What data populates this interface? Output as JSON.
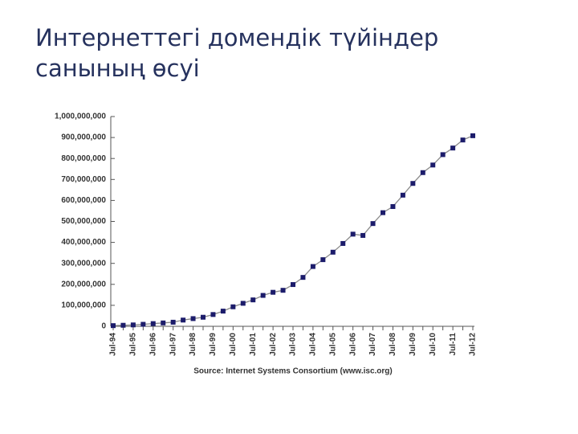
{
  "title": "Интернеттегі домендік түйіндер санының өсуі",
  "chart_data": {
    "type": "line",
    "categories": [
      "Jul-94",
      null,
      "Jul-95",
      null,
      "Jul-96",
      null,
      "Jul-97",
      null,
      "Jul-98",
      null,
      "Jul-99",
      null,
      "Jul-00",
      null,
      "Jul-01",
      null,
      "Jul-02",
      null,
      "Jul-03",
      null,
      "Jul-04",
      null,
      "Jul-05",
      null,
      "Jul-06",
      null,
      "Jul-07",
      null,
      "Jul-08",
      null,
      "Jul-09",
      null,
      "Jul-10",
      null,
      "Jul-11",
      null,
      "Jul-12"
    ],
    "values": [
      3200000,
      4900000,
      6600000,
      9500000,
      12900000,
      16100000,
      19500000,
      29700000,
      36700000,
      43200000,
      56200000,
      72400000,
      93000000,
      109600000,
      125900000,
      147300000,
      162100000,
      171600000,
      199000000,
      233100000,
      285100000,
      317600000,
      353300000,
      394900000,
      439300000,
      433200000,
      489800000,
      541700000,
      570900000,
      625200000,
      681100000,
      732700000,
      768900000,
      818400000,
      849900000,
      888200000,
      908600000
    ],
    "color": "#1c1c6b",
    "line_color": "#8a8a8a",
    "ylim": [
      0,
      1000000000
    ],
    "yticks": [
      0,
      {
        "value": 100000000,
        "label": "100,000,000"
      },
      {
        "value": 200000000,
        "label": "200,000,000"
      },
      {
        "value": 300000000,
        "label": "300,000,000"
      },
      {
        "value": 400000000,
        "label": "400,000,000"
      },
      {
        "value": 500000000,
        "label": "500,000,000"
      },
      {
        "value": 600000000,
        "label": "600,000,000"
      },
      {
        "value": 700000000,
        "label": "700,000,000"
      },
      {
        "value": 800000000,
        "label": "800,000,000"
      },
      {
        "value": 900000000,
        "label": "900,000,000"
      },
      {
        "value": 1000000000,
        "label": "1,000,000,000"
      }
    ],
    "source": "Source: Internet Systems Consortium (www.isc.org)"
  }
}
